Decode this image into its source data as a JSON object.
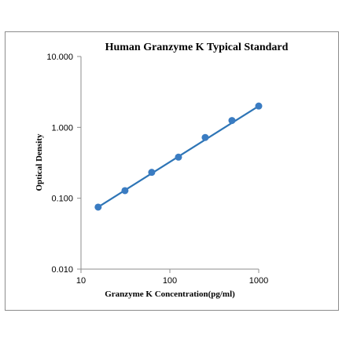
{
  "chart_data": {
    "type": "scatter",
    "title": "Human Granzyme K Typical Standard",
    "xlabel": "Granzyme K Concentration(pg/ml)",
    "ylabel": "Optical Density",
    "x_scale": "log",
    "y_scale": "log",
    "xlim": [
      10,
      1000
    ],
    "ylim": [
      0.01,
      10
    ],
    "x_ticks": [
      "10",
      "100",
      "1000"
    ],
    "x_tick_values": [
      10,
      100,
      1000
    ],
    "y_ticks": [
      "10.000",
      "1.000",
      "0.100",
      "0.010"
    ],
    "y_tick_values": [
      10,
      1,
      0.1,
      0.01
    ],
    "grid": false,
    "legend": "none",
    "series": [
      {
        "points": [
          {
            "x": 15.6,
            "y": 0.075
          },
          {
            "x": 31.25,
            "y": 0.128
          },
          {
            "x": 62.5,
            "y": 0.232
          },
          {
            "x": 125,
            "y": 0.38
          },
          {
            "x": 250,
            "y": 0.72
          },
          {
            "x": 500,
            "y": 1.25
          },
          {
            "x": 1000,
            "y": 2.0
          }
        ],
        "fit_line": {
          "x": [
            15.6,
            1000
          ],
          "y": [
            0.075,
            2.0
          ]
        },
        "color": "#2e75b6",
        "marker_color": "#3a7cc2"
      }
    ]
  }
}
